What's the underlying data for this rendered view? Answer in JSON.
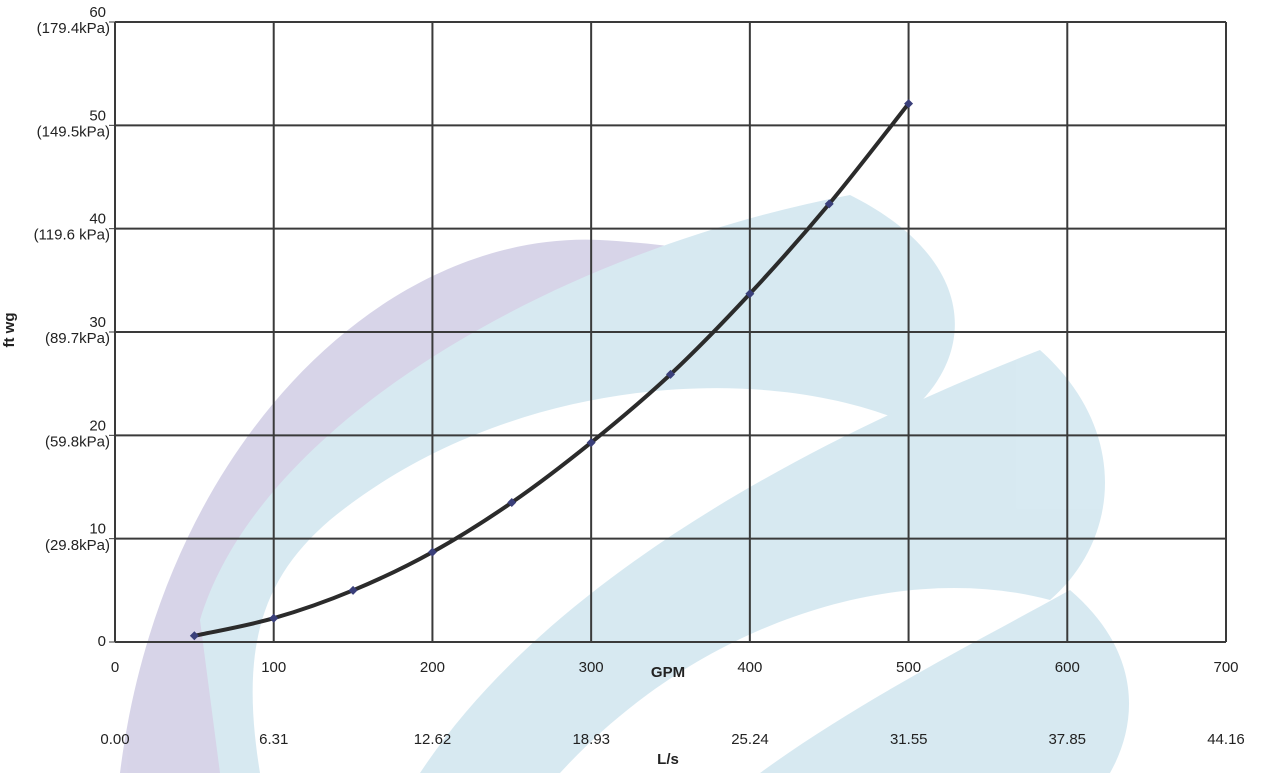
{
  "chart_data": {
    "type": "line",
    "x_label": "GPM",
    "x2_label": "L/s",
    "y_label": "ft wg",
    "x": [
      50,
      100,
      150,
      200,
      250,
      300,
      350,
      400,
      450,
      500
    ],
    "series": [
      {
        "color": "#2b2b2b",
        "marker_color": "#3a3f7a",
        "values": [
          0.6,
          2.3,
          5.0,
          8.7,
          13.5,
          19.3,
          25.9,
          33.7,
          42.4,
          52.1
        ]
      }
    ],
    "xlim": [
      0,
      700
    ],
    "xticks": [
      0,
      100,
      200,
      300,
      400,
      500,
      600,
      700
    ],
    "x2lim": [
      0,
      44.16
    ],
    "x2ticks": [
      {
        "value": 0,
        "label": "0.00"
      },
      6.31,
      12.62,
      18.93,
      25.24,
      31.55,
      37.85,
      44.16
    ],
    "ylim": [
      0,
      60
    ],
    "yticks": [
      0,
      10,
      20,
      30,
      40,
      50,
      60
    ],
    "y2lim": [
      0,
      179.4
    ],
    "y2ticks": [
      {
        "value": 29.8,
        "label": "(29.8kPa)"
      },
      {
        "value": 59.8,
        "label": "(59.8kPa)"
      },
      {
        "value": 89.7,
        "label": "(89.7kPa)"
      },
      {
        "value": 119.6,
        "label": "(119.6 kPa)"
      },
      {
        "value": 149.5,
        "label": "(149.5kPa)"
      },
      {
        "value": 179.4,
        "label": "(179.4kPa)"
      }
    ],
    "grid": true
  }
}
